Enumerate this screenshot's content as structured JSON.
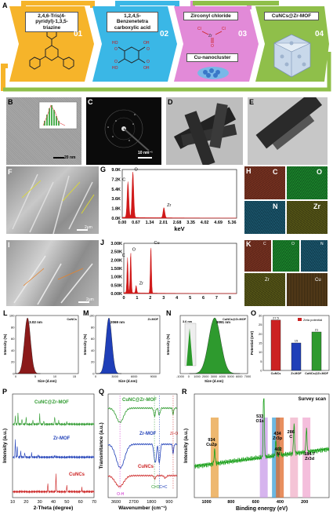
{
  "panel_labels": {
    "A": "A",
    "B": "B",
    "C": "C",
    "D": "D",
    "E": "E",
    "F": "F",
    "G": "G",
    "H": "H",
    "I": "I",
    "J": "J",
    "K": "K",
    "L": "L",
    "M": "M",
    "N": "N",
    "O": "O",
    "P": "P",
    "Q": "Q",
    "R": "R"
  },
  "scheme": {
    "steps": [
      {
        "number": "01",
        "label": "2,4,6-Tris(4-pyridyl)-1,3,5-triazine",
        "color": "#f6b42a"
      },
      {
        "number": "02",
        "label": "1,2,4,5-Benzenetetra carboxylic acid",
        "color": "#3ab7e6"
      },
      {
        "number": "03",
        "label": "Zirconyl chloride",
        "sub_label": "Cu-nanocluster",
        "color": "#e28ad8"
      },
      {
        "number": "04",
        "label": "CuNCs@Zr-MOF",
        "color": "#8fbf4a"
      }
    ],
    "zr_formula": {
      "cl": "Cl",
      "zr": "Zr",
      "o": "O"
    }
  },
  "scalebars": {
    "B": "20 nm",
    "C": "10 nm⁻¹",
    "F": "2μm",
    "I": "2μm"
  },
  "colors": {
    "dark_red": "#8b1a1a",
    "red": "#cc2222",
    "blue": "#1f3fb8",
    "green": "#2e9a2e",
    "magenta": "#cc22cc",
    "edx_red": "#d01818"
  },
  "eds_map_labels": {
    "H": [
      "C",
      "O",
      "N",
      "Zr"
    ],
    "K": [
      "C",
      "O",
      "N",
      "Zr",
      "Cu"
    ]
  },
  "chart_data": [
    {
      "panel": "G",
      "type": "area",
      "xlabel": "keV",
      "ylabel": "",
      "x_ticks": [
        "0.00",
        "0.67",
        "1.34",
        "2.01",
        "2.68",
        "3.35",
        "4.02",
        "4.69",
        "5.36"
      ],
      "y_ticks": [
        "0.0K",
        "1.8K",
        "3.6K",
        "5.4K",
        "7.2K",
        "9.0K"
      ],
      "ylim": [
        0,
        9000
      ],
      "xlim": [
        0,
        5.6
      ],
      "peak_labels": [
        "C",
        "O",
        "Zr"
      ],
      "peaks": [
        {
          "x": 0.28,
          "y": 6600
        },
        {
          "x": 0.52,
          "y": 8500
        },
        {
          "x": 2.04,
          "y": 1900
        }
      ]
    },
    {
      "panel": "J",
      "type": "area",
      "xlabel": "",
      "ylabel": "",
      "x_ticks": [
        "0",
        "1",
        "2",
        "3",
        "4",
        "5",
        "6",
        "7",
        "8"
      ],
      "y_ticks": [
        "0.00K",
        "0.50K",
        "1.00K",
        "1.50K",
        "2.00K",
        "2.50K",
        "3.00K"
      ],
      "ylim": [
        0,
        3000
      ],
      "xlim": [
        0,
        8.5
      ],
      "peak_labels": [
        "C",
        "O",
        "Zr",
        "Cu"
      ],
      "peaks": [
        {
          "x": 0.28,
          "y": 2100
        },
        {
          "x": 0.52,
          "y": 2450
        },
        {
          "x": 0.93,
          "y": 450
        },
        {
          "x": 2.04,
          "y": 2850
        }
      ]
    },
    {
      "panel": "L",
      "type": "area",
      "title": "CuNCs",
      "annotation": "3.02 nm",
      "xlabel": "Size (d.nm)",
      "ylabel": "Intensity (%)",
      "x_ticks": [
        "0",
        "5",
        "10",
        "15"
      ],
      "y_ticks": [
        "0",
        "20",
        "40",
        "60",
        "80",
        "100"
      ],
      "xlim": [
        0,
        16
      ],
      "ylim": [
        0,
        100
      ],
      "peak": 3.02
    },
    {
      "panel": "M",
      "type": "area",
      "title": "Zr-MOF",
      "annotation": "2069 nm",
      "xlabel": "Size (d.nm)",
      "ylabel": "Intensity (%)",
      "x_ticks": [
        "0",
        "3000",
        "6000",
        "9000"
      ],
      "y_ticks": [
        "0",
        "20",
        "40",
        "60",
        "80",
        "100"
      ],
      "xlim": [
        0,
        10000
      ],
      "ylim": [
        0,
        100
      ],
      "peak": 2069
    },
    {
      "panel": "N",
      "type": "area",
      "title": "CuNCs@Zr-MOF",
      "annotation": "3091 nm",
      "inset_annotation": "3.6 nm",
      "xlabel": "Size (d.nm)",
      "ylabel": "Intensity (%)",
      "x_ticks": [
        "-1000",
        "0",
        "1000",
        "2000",
        "3000",
        "4000",
        "5000",
        "6000",
        "7000"
      ],
      "xlim": [
        -1000,
        7000
      ],
      "ylim": [
        0,
        100
      ],
      "peak": 3091
    },
    {
      "panel": "O",
      "type": "bar",
      "legend": "Zeta potential",
      "ylabel": "Potential (mV)",
      "categories": [
        "CuNCs",
        "Zr-MOF",
        "CuNCs@Zr-MOF"
      ],
      "values": [
        27.5,
        15,
        21
      ],
      "value_labels": [
        "27.5",
        "15",
        "21"
      ],
      "y_ticks": [
        "0",
        "5",
        "10",
        "15",
        "20",
        "25",
        "30"
      ],
      "ylim": [
        0,
        30
      ]
    },
    {
      "panel": "P",
      "type": "line",
      "xlabel": "2-Theta (degree)",
      "ylabel": "Intensity (a.u.)",
      "x_ticks": [
        "10",
        "20",
        "30",
        "40",
        "50",
        "60",
        "70"
      ],
      "xlim": [
        10,
        70
      ],
      "series": [
        {
          "name": "CuNC@Zr-MOF"
        },
        {
          "name": "Zr-MOF"
        },
        {
          "name": "CuNCs"
        }
      ]
    },
    {
      "panel": "Q",
      "type": "line",
      "xlabel": "Wavenumber (cm⁻¹)",
      "ylabel": "Transmitance (a.u.)",
      "x_ticks": [
        "3600",
        "2700",
        "1800",
        "900"
      ],
      "series": [
        {
          "name": "CuNC@Zr-MOF"
        },
        {
          "name": "Zr-MOF"
        },
        {
          "name": "CuNCs"
        }
      ],
      "annotations": [
        "O-H",
        "C=O",
        "C=C",
        "Zr-O"
      ]
    },
    {
      "panel": "R",
      "type": "line",
      "title": "Survey scan",
      "xlabel": "Binding energy (eV)",
      "ylabel": "Intensity (a.u.)",
      "x_ticks": [
        "1000",
        "800",
        "600",
        "400",
        "200"
      ],
      "xlim": [
        1100,
        0
      ],
      "peaks": [
        {
          "label": "934",
          "label2": "Cu2p",
          "x": 934
        },
        {
          "label": "533",
          "label2": "O1s",
          "x": 533
        },
        {
          "label": "434",
          "label2": "Zr3p",
          "x": 434
        },
        {
          "label": "402",
          "label2": "N",
          "x": 402
        },
        {
          "label": "286",
          "label2": "C",
          "x": 286
        },
        {
          "label": "184.7",
          "label2": "Zr3d",
          "x": 184.7
        }
      ]
    }
  ]
}
